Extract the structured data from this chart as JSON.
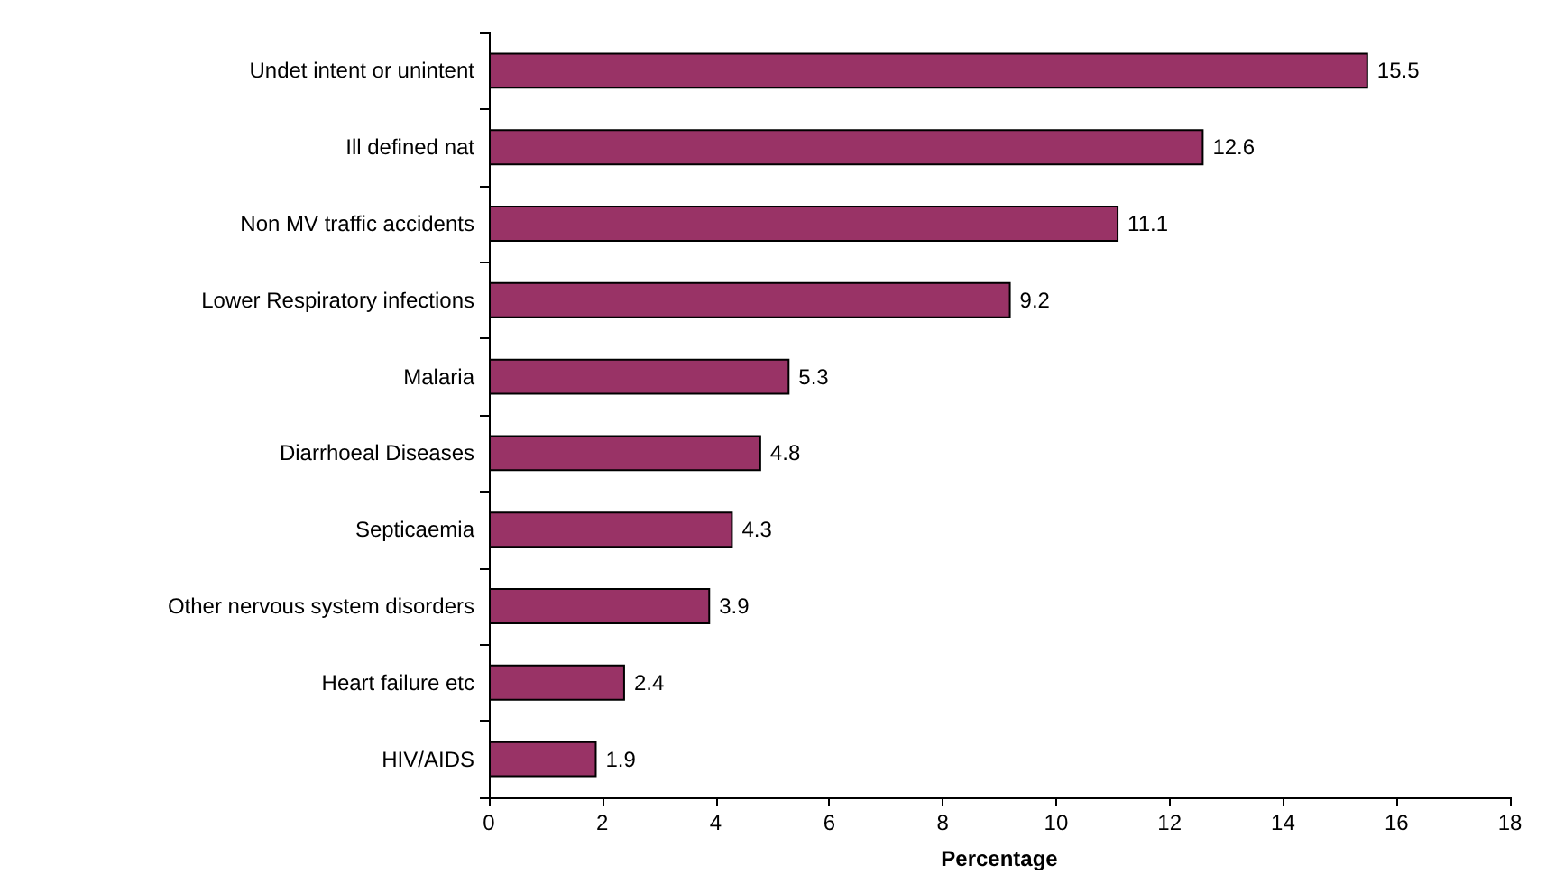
{
  "chart_data": {
    "type": "bar",
    "orientation": "horizontal",
    "xlabel": "Percentage",
    "categories": [
      "Undet intent or unintent",
      "Ill defined nat",
      "Non MV traffic accidents",
      "Lower Respiratory infections",
      "Malaria",
      "Diarrhoeal Diseases",
      "Septicaemia",
      "Other nervous system disorders",
      "Heart failure etc",
      "HIV/AIDS"
    ],
    "values": [
      15.5,
      12.6,
      11.1,
      9.2,
      5.3,
      4.8,
      4.3,
      3.9,
      2.4,
      1.9
    ],
    "color": "#993366",
    "xlim": [
      0,
      18
    ],
    "xticks": [
      0,
      2,
      4,
      6,
      8,
      10,
      12,
      14,
      16,
      18
    ],
    "data_labels": true,
    "grid": false
  }
}
